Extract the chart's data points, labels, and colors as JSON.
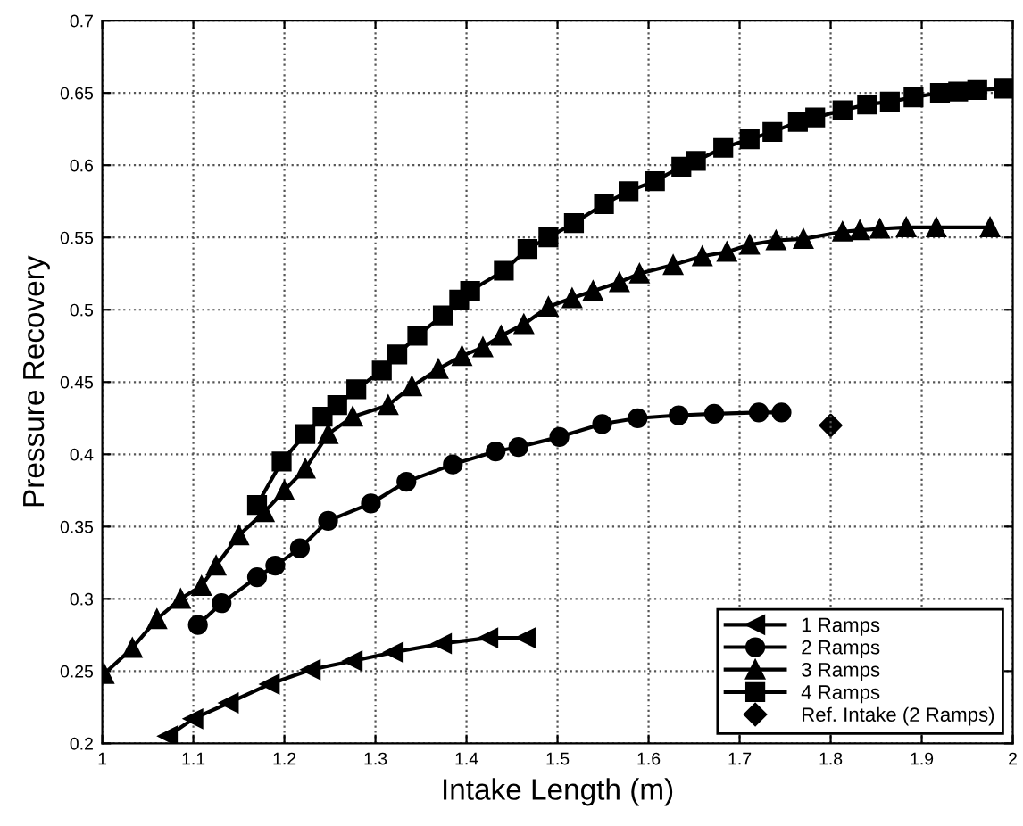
{
  "chart_data": {
    "type": "line",
    "xlabel": "Intake Length (m)",
    "ylabel": "Pressure Recovery",
    "xlim": [
      1,
      2
    ],
    "ylim": [
      0.2,
      0.7
    ],
    "xticks": [
      1,
      1.1,
      1.2,
      1.3,
      1.4,
      1.5,
      1.6,
      1.7,
      1.8,
      1.9,
      2
    ],
    "yticks": [
      0.2,
      0.25,
      0.3,
      0.35,
      0.4,
      0.45,
      0.5,
      0.55,
      0.6,
      0.65,
      0.7
    ],
    "grid": true,
    "legend": "bottom right",
    "line_style": "solid",
    "series": [
      {
        "name": "1 Ramps",
        "color": "#000000",
        "marker": "triangle_left",
        "x": [
          1.072,
          1.1,
          1.139,
          1.184,
          1.229,
          1.275,
          1.32,
          1.373,
          1.424,
          1.465
        ],
        "values": [
          0.205,
          0.217,
          0.228,
          0.241,
          0.251,
          0.257,
          0.263,
          0.269,
          0.273,
          0.273
        ]
      },
      {
        "name": "2 Ramps",
        "color": "#000000",
        "marker": "circle",
        "x": [
          1.105,
          1.131,
          1.17,
          1.19,
          1.217,
          1.248,
          1.295,
          1.334,
          1.385,
          1.432,
          1.457,
          1.502,
          1.549,
          1.588,
          1.633,
          1.672,
          1.721,
          1.746
        ],
        "values": [
          0.282,
          0.297,
          0.315,
          0.323,
          0.335,
          0.354,
          0.366,
          0.381,
          0.393,
          0.402,
          0.405,
          0.412,
          0.421,
          0.425,
          0.427,
          0.428,
          0.429,
          0.429
        ]
      },
      {
        "name": "3 Ramps",
        "color": "#000000",
        "marker": "triangle",
        "x": [
          1.002,
          1.033,
          1.06,
          1.086,
          1.109,
          1.125,
          1.15,
          1.178,
          1.2,
          1.223,
          1.248,
          1.275,
          1.314,
          1.34,
          1.369,
          1.395,
          1.418,
          1.438,
          1.463,
          1.49,
          1.516,
          1.539,
          1.568,
          1.59,
          1.627,
          1.659,
          1.686,
          1.711,
          1.74,
          1.77,
          1.813,
          1.832,
          1.854,
          1.883,
          1.916,
          1.975
        ],
        "values": [
          0.248,
          0.266,
          0.286,
          0.3,
          0.309,
          0.323,
          0.344,
          0.36,
          0.375,
          0.39,
          0.414,
          0.426,
          0.434,
          0.447,
          0.459,
          0.468,
          0.474,
          0.482,
          0.49,
          0.502,
          0.508,
          0.513,
          0.519,
          0.525,
          0.531,
          0.537,
          0.54,
          0.545,
          0.548,
          0.549,
          0.554,
          0.555,
          0.556,
          0.557,
          0.557,
          0.557
        ]
      },
      {
        "name": "4 Ramps",
        "color": "#000000",
        "marker": "square",
        "x": [
          1.17,
          1.197,
          1.223,
          1.242,
          1.258,
          1.279,
          1.307,
          1.324,
          1.346,
          1.374,
          1.392,
          1.404,
          1.441,
          1.467,
          1.49,
          1.518,
          1.551,
          1.578,
          1.607,
          1.636,
          1.652,
          1.682,
          1.711,
          1.736,
          1.764,
          1.783,
          1.813,
          1.84,
          1.865,
          1.891,
          1.92,
          1.94,
          1.961,
          1.99
        ],
        "values": [
          0.365,
          0.395,
          0.414,
          0.426,
          0.434,
          0.445,
          0.458,
          0.469,
          0.482,
          0.496,
          0.507,
          0.513,
          0.527,
          0.542,
          0.55,
          0.56,
          0.573,
          0.582,
          0.589,
          0.599,
          0.603,
          0.612,
          0.618,
          0.623,
          0.63,
          0.633,
          0.638,
          0.642,
          0.644,
          0.647,
          0.65,
          0.651,
          0.652,
          0.653
        ]
      },
      {
        "name": "Ref. Intake (2 Ramps)",
        "type": "scatter",
        "color": "#000000",
        "marker": "diamond",
        "x": [
          1.8
        ],
        "values": [
          0.42
        ]
      }
    ]
  }
}
